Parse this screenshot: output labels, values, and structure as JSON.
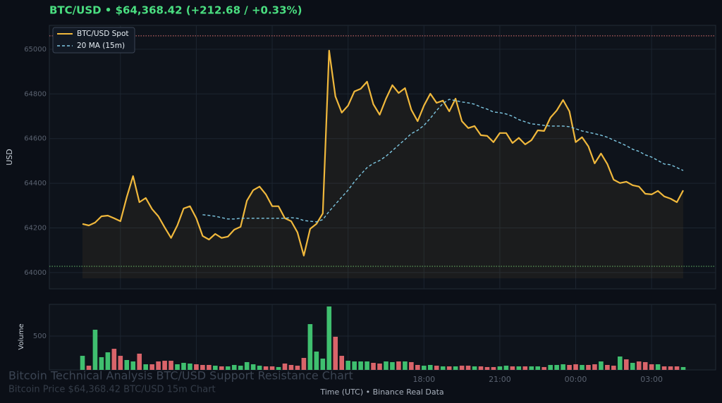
{
  "header": {
    "title": "BTC/USD  •  $64,368.42  (+212.68 / +0.33%)"
  },
  "watermark": {
    "title": "Bitcoin Technical Analysis BTC/USD Support Resistance Chart",
    "subtitle": "Bitcoin Price $64,368.42 BTC/USD 15m Chart"
  },
  "chart_data": [
    {
      "type": "line",
      "y_label": "USD",
      "ylim": [
        63927,
        65107
      ],
      "yticks": [
        64000,
        64200,
        64400,
        64600,
        64800,
        65000
      ],
      "grid": true,
      "legend": "upper left",
      "hlines": [
        {
          "value": 65060,
          "color": "#e57373"
        },
        {
          "value": 64028,
          "color": "#66bb6a"
        }
      ],
      "series": [
        {
          "name": "BTC/USD Spot",
          "color": "#f0b83c",
          "values": [
            64218,
            64211,
            64224,
            64252,
            64255,
            64243,
            64230,
            64338,
            64432,
            64315,
            64334,
            64284,
            64252,
            64202,
            64155,
            64211,
            64287,
            64297,
            64243,
            64164,
            64148,
            64173,
            64155,
            64161,
            64192,
            64205,
            64322,
            64369,
            64385,
            64350,
            64297,
            64297,
            64243,
            64230,
            64180,
            64076,
            64196,
            64218,
            64265,
            64994,
            64789,
            64716,
            64748,
            64811,
            64823,
            64855,
            64754,
            64707,
            64779,
            64839,
            64804,
            64826,
            64729,
            64678,
            64748,
            64801,
            64760,
            64770,
            64722,
            64779,
            64678,
            64647,
            64656,
            64615,
            64612,
            64584,
            64625,
            64625,
            64580,
            64603,
            64574,
            64593,
            64637,
            64634,
            64694,
            64726,
            64773,
            64722,
            64584,
            64606,
            64565,
            64489,
            64533,
            64486,
            64416,
            64401,
            64407,
            64391,
            64385,
            64353,
            64350,
            64366,
            64341,
            64331,
            64315,
            64368
          ]
        },
        {
          "name": "20 MA (15m)",
          "color": "#7ec8e3",
          "dashed": true,
          "values": [
            null,
            null,
            null,
            null,
            null,
            null,
            null,
            null,
            null,
            null,
            null,
            null,
            null,
            null,
            null,
            null,
            null,
            null,
            null,
            64259,
            64256,
            64252,
            64246,
            64240,
            64240,
            64243,
            64243,
            64243,
            64243,
            64243,
            64243,
            64243,
            64243,
            64246,
            64243,
            64233,
            64230,
            64227,
            64237,
            64274,
            64306,
            64338,
            64369,
            64407,
            64439,
            64470,
            64489,
            64502,
            64521,
            64546,
            64571,
            64596,
            64622,
            64637,
            64659,
            64691,
            64726,
            64757,
            64776,
            64770,
            64764,
            64760,
            64754,
            64741,
            64732,
            64719,
            64716,
            64710,
            64700,
            64685,
            64675,
            64666,
            64663,
            64659,
            64656,
            64656,
            64656,
            64653,
            64644,
            64634,
            64628,
            64622,
            64615,
            64606,
            64593,
            64581,
            64568,
            64552,
            64543,
            64527,
            64517,
            64502,
            64486,
            64483,
            64470,
            64457
          ]
        }
      ]
    },
    {
      "type": "bar",
      "y_label": "Volume",
      "x_label": "Time (UTC)  •  Binance Real Data",
      "ylim": [
        0,
        969
      ],
      "yticks": [
        500
      ],
      "grid": true,
      "categories": [
        null,
        null,
        null,
        null,
        null,
        null,
        null,
        null,
        null,
        null,
        null,
        null,
        null,
        null,
        null,
        null,
        null,
        null,
        null,
        null,
        null,
        null,
        null,
        null,
        null,
        null,
        null,
        null,
        null,
        null,
        null,
        null,
        null,
        null,
        null,
        null,
        null,
        null,
        null,
        null,
        null,
        null,
        null,
        null,
        null,
        null,
        null,
        null,
        null,
        null,
        null,
        null,
        null,
        null,
        "18:00",
        null,
        null,
        null,
        null,
        null,
        null,
        null,
        null,
        null,
        null,
        null,
        "21:00",
        null,
        null,
        null,
        null,
        null,
        null,
        null,
        null,
        null,
        null,
        null,
        "00:00",
        null,
        null,
        null,
        null,
        null,
        null,
        null,
        null,
        null,
        null,
        null,
        "03:00",
        null,
        null,
        null,
        null,
        null
      ],
      "values": [
        208,
        62,
        594,
        188,
        260,
        312,
        208,
        146,
        125,
        240,
        83,
        83,
        125,
        135,
        135,
        83,
        104,
        94,
        83,
        73,
        73,
        62,
        52,
        52,
        73,
        62,
        115,
        83,
        62,
        52,
        52,
        42,
        94,
        73,
        62,
        177,
        677,
        271,
        167,
        938,
        490,
        208,
        135,
        125,
        125,
        125,
        104,
        94,
        125,
        115,
        125,
        125,
        115,
        73,
        62,
        73,
        62,
        52,
        52,
        52,
        62,
        62,
        52,
        52,
        42,
        42,
        52,
        62,
        52,
        52,
        52,
        52,
        52,
        42,
        73,
        73,
        83,
        73,
        83,
        73,
        73,
        83,
        125,
        73,
        62,
        198,
        156,
        104,
        125,
        115,
        83,
        83,
        52,
        52,
        52,
        42
      ],
      "colors": [
        "#3fbf6f",
        "#d9646a",
        "#3fbf6f",
        "#3fbf6f",
        "#3fbf6f",
        "#d9646a",
        "#d9646a",
        "#3fbf6f",
        "#3fbf6f",
        "#d9646a",
        "#3fbf6f",
        "#d9646a",
        "#d9646a",
        "#d9646a",
        "#d9646a",
        "#3fbf6f",
        "#3fbf6f",
        "#3fbf6f",
        "#d9646a",
        "#d9646a",
        "#d9646a",
        "#3fbf6f",
        "#d9646a",
        "#3fbf6f",
        "#3fbf6f",
        "#3fbf6f",
        "#3fbf6f",
        "#3fbf6f",
        "#3fbf6f",
        "#d9646a",
        "#d9646a",
        "#3fbf6f",
        "#d9646a",
        "#d9646a",
        "#d9646a",
        "#d9646a",
        "#3fbf6f",
        "#3fbf6f",
        "#3fbf6f",
        "#3fbf6f",
        "#d9646a",
        "#d9646a",
        "#3fbf6f",
        "#3fbf6f",
        "#3fbf6f",
        "#3fbf6f",
        "#d9646a",
        "#d9646a",
        "#3fbf6f",
        "#3fbf6f",
        "#d9646a",
        "#3fbf6f",
        "#d9646a",
        "#d9646a",
        "#3fbf6f",
        "#3fbf6f",
        "#d9646a",
        "#3fbf6f",
        "#d9646a",
        "#3fbf6f",
        "#d9646a",
        "#d9646a",
        "#3fbf6f",
        "#d9646a",
        "#d9646a",
        "#d9646a",
        "#3fbf6f",
        "#3fbf6f",
        "#d9646a",
        "#3fbf6f",
        "#d9646a",
        "#3fbf6f",
        "#3fbf6f",
        "#d9646a",
        "#3fbf6f",
        "#3fbf6f",
        "#3fbf6f",
        "#d9646a",
        "#d9646a",
        "#3fbf6f",
        "#d9646a",
        "#d9646a",
        "#3fbf6f",
        "#d9646a",
        "#d9646a",
        "#3fbf6f",
        "#d9646a",
        "#3fbf6f",
        "#d9646a",
        "#d9646a",
        "#d9646a",
        "#3fbf6f",
        "#d9646a",
        "#d9646a",
        "#d9646a",
        "#3fbf6f"
      ]
    }
  ]
}
